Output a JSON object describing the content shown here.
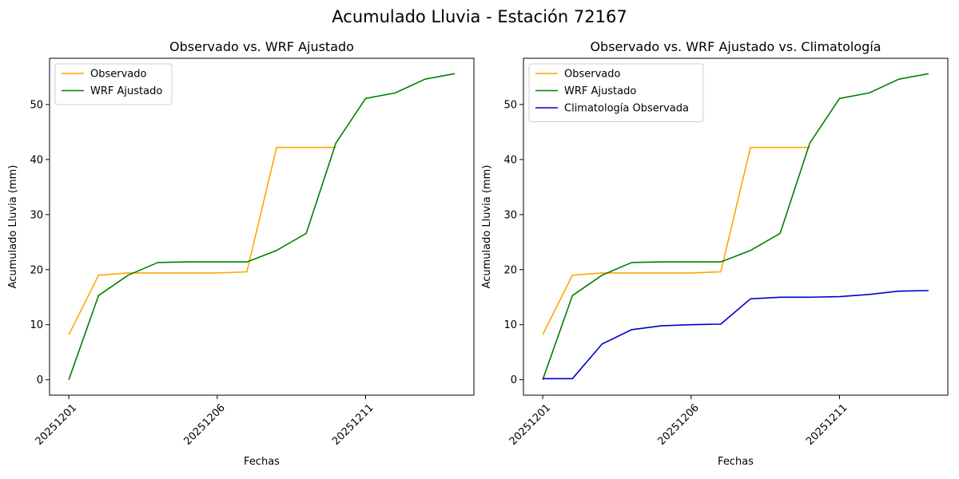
{
  "figure": {
    "suptitle": "Acumulado Lluvia - Estación 72167"
  },
  "colors": {
    "observado": "#ffa500",
    "wrf": "#008000",
    "clima": "#0000cd"
  },
  "chart_data": [
    {
      "type": "line",
      "title": "Observado vs. WRF Ajustado",
      "xlabel": "Fechas",
      "ylabel": "Acumulado Lluvia (mm)",
      "x": [
        "20251201",
        "20251202",
        "20251203",
        "20251204",
        "20251205",
        "20251206",
        "20251207",
        "20251208",
        "20251209",
        "20251210",
        "20251211",
        "20251212",
        "20251213",
        "20251214"
      ],
      "xticks": [
        "20251201",
        "20251206",
        "20251211"
      ],
      "yticks": [
        0,
        10,
        20,
        30,
        40,
        50
      ],
      "ylim": [
        -2.8,
        58.4
      ],
      "legend": "top-left",
      "series": [
        {
          "name": "Observado",
          "color": "#ffa500",
          "values": [
            8.2,
            19.0,
            19.4,
            19.4,
            19.4,
            19.4,
            19.6,
            42.2,
            42.2,
            42.2,
            null,
            null,
            null,
            null
          ]
        },
        {
          "name": "WRF Ajustado",
          "color": "#008000",
          "values": [
            0.0,
            15.3,
            19.0,
            21.3,
            21.4,
            21.4,
            21.4,
            23.5,
            26.6,
            43.0,
            51.1,
            52.1,
            54.6,
            55.6
          ]
        }
      ]
    },
    {
      "type": "line",
      "title": "Observado vs. WRF Ajustado vs. Climatología",
      "xlabel": "Fechas",
      "ylabel": "Acumulado Lluvia (mm)",
      "x": [
        "20251201",
        "20251202",
        "20251203",
        "20251204",
        "20251205",
        "20251206",
        "20251207",
        "20251208",
        "20251209",
        "20251210",
        "20251211",
        "20251212",
        "20251213",
        "20251214"
      ],
      "xticks": [
        "20251201",
        "20251206",
        "20251211"
      ],
      "yticks": [
        0,
        10,
        20,
        30,
        40,
        50
      ],
      "ylim": [
        -2.8,
        58.4
      ],
      "legend": "top-left",
      "series": [
        {
          "name": "Observado",
          "color": "#ffa500",
          "values": [
            8.2,
            19.0,
            19.4,
            19.4,
            19.4,
            19.4,
            19.6,
            42.2,
            42.2,
            42.2,
            null,
            null,
            null,
            null
          ]
        },
        {
          "name": "WRF Ajustado",
          "color": "#008000",
          "values": [
            0.0,
            15.3,
            19.0,
            21.3,
            21.4,
            21.4,
            21.4,
            23.5,
            26.6,
            43.0,
            51.1,
            52.1,
            54.6,
            55.6
          ]
        },
        {
          "name": "Climatología Observada",
          "color": "#0000cd",
          "values": [
            0.2,
            0.2,
            6.5,
            9.1,
            9.8,
            10.0,
            10.1,
            14.7,
            15.0,
            15.0,
            15.1,
            15.5,
            16.1,
            16.2
          ]
        }
      ]
    }
  ]
}
